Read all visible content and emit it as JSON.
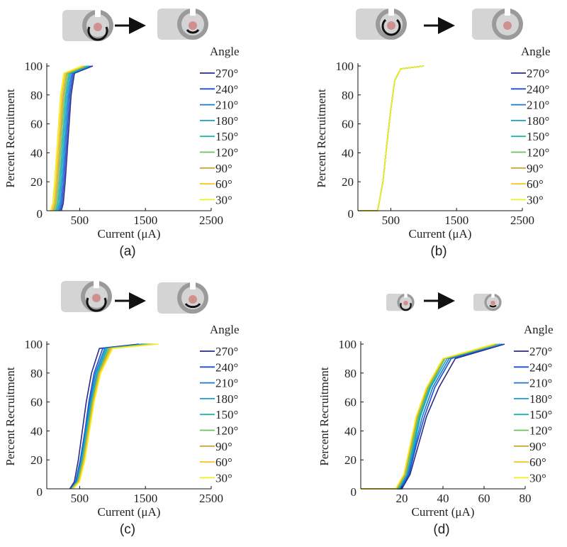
{
  "chart_data": [
    {
      "type": "line",
      "caption": "(a)",
      "xlabel": "Current (μA)",
      "ylabel": "Percent Recruitment",
      "legend_title": "Angle",
      "xlim": [
        0,
        2500
      ],
      "ylim": [
        0,
        100
      ],
      "xticks": [
        500,
        1500,
        2500
      ],
      "yticks": [
        0,
        20,
        40,
        60,
        80,
        100
      ],
      "series": [
        {
          "name": "270°",
          "color": "#2a2a8a",
          "x": [
            220,
            250,
            280,
            310,
            340,
            370,
            420,
            700
          ],
          "values": [
            0,
            5,
            20,
            40,
            60,
            80,
            95,
            100
          ]
        },
        {
          "name": "240°",
          "color": "#1f4fcf",
          "x": [
            200,
            230,
            260,
            290,
            320,
            350,
            400,
            680
          ],
          "values": [
            0,
            5,
            20,
            40,
            60,
            80,
            95,
            100
          ]
        },
        {
          "name": "210°",
          "color": "#1a78d0",
          "x": [
            180,
            210,
            240,
            270,
            300,
            330,
            380,
            660
          ],
          "values": [
            0,
            5,
            20,
            40,
            60,
            80,
            95,
            100
          ]
        },
        {
          "name": "180°",
          "color": "#16a0d0",
          "x": [
            160,
            190,
            220,
            250,
            280,
            310,
            360,
            640
          ],
          "values": [
            0,
            5,
            20,
            40,
            60,
            80,
            95,
            100
          ]
        },
        {
          "name": "150°",
          "color": "#1eb5a8",
          "x": [
            140,
            170,
            200,
            230,
            260,
            290,
            340,
            620
          ],
          "values": [
            0,
            5,
            20,
            40,
            60,
            80,
            95,
            100
          ]
        },
        {
          "name": "120°",
          "color": "#70c060",
          "x": [
            120,
            150,
            180,
            210,
            240,
            270,
            320,
            600
          ],
          "values": [
            0,
            5,
            20,
            40,
            60,
            80,
            95,
            100
          ]
        },
        {
          "name": "90°",
          "color": "#c8a83a",
          "x": [
            100,
            130,
            160,
            190,
            220,
            250,
            300,
            580
          ],
          "values": [
            0,
            5,
            20,
            40,
            60,
            80,
            95,
            100
          ]
        },
        {
          "name": "60°",
          "color": "#f5c518",
          "x": [
            80,
            110,
            140,
            170,
            200,
            230,
            280,
            560
          ],
          "values": [
            0,
            5,
            20,
            40,
            60,
            80,
            95,
            100
          ]
        },
        {
          "name": "30°",
          "color": "#f0f020",
          "x": [
            60,
            90,
            120,
            150,
            180,
            210,
            260,
            540
          ],
          "values": [
            0,
            5,
            20,
            40,
            60,
            80,
            95,
            100
          ]
        }
      ]
    },
    {
      "type": "line",
      "caption": "(b)",
      "xlabel": "Current (μA)",
      "ylabel": "Percent Recruitment",
      "legend_title": "Angle",
      "xlim": [
        0,
        2500
      ],
      "ylim": [
        0,
        100
      ],
      "xticks": [
        500,
        1500,
        2500
      ],
      "yticks": [
        0,
        20,
        40,
        60,
        80,
        100
      ],
      "series": [
        {
          "name": "270°",
          "color": "#2a2a8a",
          "x": [
            0,
            300,
            380,
            450,
            500,
            560,
            650,
            1000
          ],
          "values": [
            0,
            0,
            20,
            50,
            70,
            90,
            98,
            100
          ]
        },
        {
          "name": "240°",
          "color": "#1f4fcf",
          "x": [
            0,
            300,
            380,
            450,
            500,
            560,
            650,
            1000
          ],
          "values": [
            0,
            0,
            20,
            50,
            70,
            90,
            98,
            100
          ]
        },
        {
          "name": "210°",
          "color": "#1a78d0",
          "x": [
            0,
            300,
            380,
            450,
            500,
            560,
            650,
            1000
          ],
          "values": [
            0,
            0,
            20,
            50,
            70,
            90,
            98,
            100
          ]
        },
        {
          "name": "180°",
          "color": "#16a0d0",
          "x": [
            0,
            300,
            380,
            450,
            500,
            560,
            650,
            1000
          ],
          "values": [
            0,
            0,
            20,
            50,
            70,
            90,
            98,
            100
          ]
        },
        {
          "name": "150°",
          "color": "#1eb5a8",
          "x": [
            0,
            300,
            380,
            450,
            500,
            560,
            650,
            1000
          ],
          "values": [
            0,
            0,
            20,
            50,
            70,
            90,
            98,
            100
          ]
        },
        {
          "name": "120°",
          "color": "#70c060",
          "x": [
            0,
            300,
            380,
            450,
            500,
            560,
            650,
            1000
          ],
          "values": [
            0,
            0,
            20,
            50,
            70,
            90,
            98,
            100
          ]
        },
        {
          "name": "90°",
          "color": "#c8a83a",
          "x": [
            0,
            300,
            380,
            450,
            500,
            560,
            650,
            1000
          ],
          "values": [
            0,
            0,
            20,
            50,
            70,
            90,
            98,
            100
          ]
        },
        {
          "name": "60°",
          "color": "#f5c518",
          "x": [
            0,
            300,
            380,
            450,
            500,
            560,
            650,
            1000
          ],
          "values": [
            0,
            0,
            20,
            50,
            70,
            90,
            98,
            100
          ]
        },
        {
          "name": "30°",
          "color": "#f0f020",
          "x": [
            0,
            300,
            380,
            450,
            500,
            560,
            650,
            1000
          ],
          "values": [
            0,
            0,
            20,
            50,
            70,
            90,
            98,
            100
          ]
        }
      ]
    },
    {
      "type": "line",
      "caption": "(c)",
      "xlabel": "Current (μA)",
      "ylabel": "Percent Recruitment",
      "legend_title": "Angle",
      "xlim": [
        0,
        2500
      ],
      "ylim": [
        0,
        100
      ],
      "xticks": [
        500,
        1500,
        2500
      ],
      "yticks": [
        0,
        20,
        40,
        60,
        80,
        100
      ],
      "series": [
        {
          "name": "270°",
          "color": "#2a2a8a",
          "x": [
            350,
            420,
            480,
            540,
            600,
            680,
            800,
            1400
          ],
          "values": [
            0,
            5,
            20,
            40,
            60,
            80,
            97,
            100
          ]
        },
        {
          "name": "240°",
          "color": "#1f4fcf",
          "x": [
            360,
            440,
            510,
            580,
            640,
            720,
            850,
            1450
          ],
          "values": [
            0,
            5,
            20,
            40,
            60,
            80,
            97,
            100
          ]
        },
        {
          "name": "210°",
          "color": "#1a78d0",
          "x": [
            365,
            450,
            520,
            590,
            655,
            740,
            880,
            1480
          ],
          "values": [
            0,
            5,
            20,
            40,
            60,
            80,
            97,
            100
          ]
        },
        {
          "name": "180°",
          "color": "#16a0d0",
          "x": [
            370,
            460,
            530,
            600,
            670,
            760,
            900,
            1510
          ],
          "values": [
            0,
            5,
            20,
            40,
            60,
            80,
            97,
            100
          ]
        },
        {
          "name": "150°",
          "color": "#1eb5a8",
          "x": [
            375,
            465,
            540,
            610,
            680,
            775,
            920,
            1540
          ],
          "values": [
            0,
            5,
            20,
            40,
            60,
            80,
            97,
            100
          ]
        },
        {
          "name": "120°",
          "color": "#70c060",
          "x": [
            380,
            475,
            550,
            620,
            690,
            785,
            940,
            1580
          ],
          "values": [
            0,
            5,
            20,
            40,
            60,
            80,
            97,
            100
          ]
        },
        {
          "name": "90°",
          "color": "#c8a83a",
          "x": [
            385,
            480,
            560,
            630,
            700,
            795,
            960,
            1620
          ],
          "values": [
            0,
            5,
            20,
            40,
            60,
            80,
            97,
            100
          ]
        },
        {
          "name": "60°",
          "color": "#f5c518",
          "x": [
            390,
            490,
            570,
            640,
            710,
            805,
            980,
            1650
          ],
          "values": [
            0,
            5,
            20,
            40,
            60,
            80,
            97,
            100
          ]
        },
        {
          "name": "30°",
          "color": "#f0f020",
          "x": [
            400,
            500,
            580,
            650,
            720,
            820,
            1000,
            1700
          ],
          "values": [
            0,
            5,
            20,
            40,
            60,
            80,
            97,
            100
          ]
        }
      ]
    },
    {
      "type": "line",
      "caption": "(d)",
      "xlabel": "Current (μA)",
      "ylabel": "Percent Recruitment",
      "legend_title": "Angle",
      "xlim": [
        0,
        80
      ],
      "ylim": [
        0,
        100
      ],
      "xticks": [
        20,
        40,
        60,
        80
      ],
      "yticks": [
        0,
        20,
        40,
        60,
        80,
        100
      ],
      "series": [
        {
          "name": "270°",
          "color": "#2a2a8a",
          "x": [
            0,
            20,
            24,
            28,
            32,
            38,
            46,
            70
          ],
          "values": [
            0,
            0,
            10,
            30,
            50,
            70,
            90,
            100
          ]
        },
        {
          "name": "240°",
          "color": "#1f4fcf",
          "x": [
            0,
            19.5,
            23.5,
            27,
            31,
            36,
            44,
            69
          ],
          "values": [
            0,
            0,
            10,
            30,
            50,
            70,
            90,
            100
          ]
        },
        {
          "name": "210°",
          "color": "#1a78d0",
          "x": [
            0,
            19,
            23,
            26.5,
            30,
            35,
            43,
            68
          ],
          "values": [
            0,
            0,
            10,
            30,
            50,
            70,
            90,
            100
          ]
        },
        {
          "name": "180°",
          "color": "#16a0d0",
          "x": [
            0,
            18.5,
            22.5,
            26,
            29,
            34,
            42,
            68
          ],
          "values": [
            0,
            0,
            10,
            30,
            50,
            70,
            90,
            100
          ]
        },
        {
          "name": "150°",
          "color": "#1eb5a8",
          "x": [
            0,
            18,
            22,
            25.5,
            28.5,
            33.5,
            41,
            67
          ],
          "values": [
            0,
            0,
            10,
            30,
            50,
            70,
            90,
            100
          ]
        },
        {
          "name": "120°",
          "color": "#70c060",
          "x": [
            0,
            18,
            22,
            25,
            28,
            33,
            41,
            67
          ],
          "values": [
            0,
            0,
            10,
            30,
            50,
            70,
            90,
            100
          ]
        },
        {
          "name": "90°",
          "color": "#c8a83a",
          "x": [
            0,
            17.5,
            21.5,
            24.5,
            27.5,
            32.5,
            40.5,
            66
          ],
          "values": [
            0,
            0,
            10,
            30,
            50,
            70,
            90,
            100
          ]
        },
        {
          "name": "60°",
          "color": "#f5c518",
          "x": [
            0,
            17,
            21,
            24,
            27,
            32,
            40,
            65
          ],
          "values": [
            0,
            0,
            10,
            30,
            50,
            70,
            90,
            100
          ]
        },
        {
          "name": "30°",
          "color": "#f0f020",
          "x": [
            0,
            17,
            21,
            24,
            27,
            32,
            40,
            65
          ],
          "values": [
            0,
            0,
            10,
            30,
            50,
            70,
            90,
            100
          ]
        }
      ]
    }
  ]
}
